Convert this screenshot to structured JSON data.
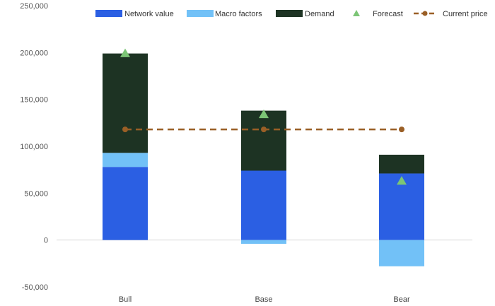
{
  "chart_data": {
    "type": "bar",
    "stacked": true,
    "categories": [
      "Bull",
      "Base",
      "Bear"
    ],
    "series": [
      {
        "name": "Network value",
        "color": "#2b5fe3",
        "values": [
          78000,
          74000,
          71000
        ]
      },
      {
        "name": "Macro factors",
        "color": "#72c1f7",
        "values": [
          15000,
          -4000,
          -28000
        ]
      },
      {
        "name": "Demand",
        "color": "#1d3323",
        "values": [
          106000,
          64000,
          20000
        ]
      }
    ],
    "forecast": {
      "name": "Forecast",
      "color": "#7cc576",
      "values": [
        199000,
        134000,
        63000
      ]
    },
    "current_price": {
      "name": "Current price",
      "color": "#9a5f26",
      "value": 118000
    },
    "ylim": [
      -50000,
      250000
    ],
    "yticks": [
      "-50,000",
      "0",
      "50,000",
      "100,000",
      "150,000",
      "200,000",
      "250,000"
    ],
    "ytick_values": [
      -50000,
      0,
      50000,
      100000,
      150000,
      200000,
      250000
    ],
    "grid": false,
    "legend_position": "top"
  }
}
